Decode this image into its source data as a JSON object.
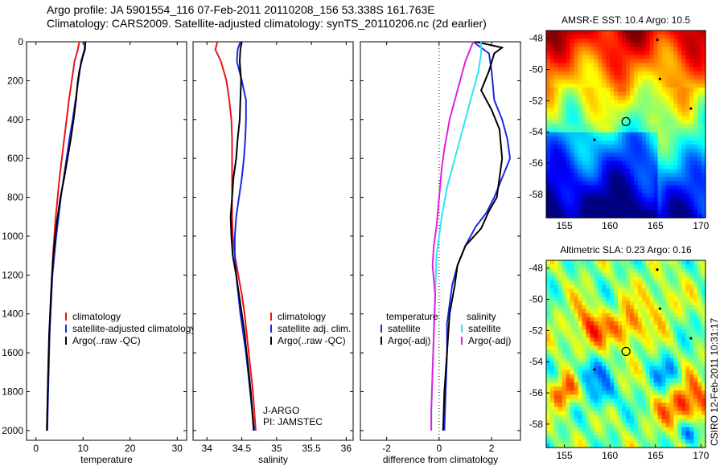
{
  "header": {
    "line1": "Argo profile: JA 5901554_116 07-Feb-2011 20110208_156 53.338S 161.763E",
    "line2": "Climatology: CARS2009. Satellite-adjusted climatology: synTS_20110206.nc (2d earlier)"
  },
  "colors": {
    "climatology": "#e8141a",
    "satellite": "#1a28e0",
    "argo": "#000000",
    "satellite_sal": "#2ee6ee",
    "argo_adj_sal": "#e020e0"
  },
  "chart_data": [
    {
      "type": "line",
      "id": "temperature",
      "xlabel": "temperature",
      "xlim": [
        -2,
        32
      ],
      "ylim": [
        2050,
        0
      ],
      "xticks": [
        0,
        10,
        20,
        30
      ],
      "yticks": [
        0,
        200,
        400,
        600,
        800,
        1000,
        1200,
        1400,
        1600,
        1800,
        2000
      ],
      "legend": {
        "position": "lower-right",
        "entries": [
          "climatology",
          "satellite-adjusted climatology",
          "Argo(..raw -QC)"
        ]
      },
      "series": [
        {
          "name": "climatology",
          "color": "climatology",
          "points": [
            [
              9.2,
              0
            ],
            [
              8.9,
              40
            ],
            [
              8.2,
              100
            ],
            [
              7.6,
              200
            ],
            [
              7.0,
              300
            ],
            [
              6.5,
              400
            ],
            [
              6.0,
              500
            ],
            [
              5.5,
              600
            ],
            [
              5.0,
              700
            ],
            [
              4.6,
              800
            ],
            [
              4.2,
              900
            ],
            [
              3.9,
              1000
            ],
            [
              3.6,
              1100
            ],
            [
              3.4,
              1200
            ],
            [
              3.2,
              1300
            ],
            [
              3.0,
              1400
            ],
            [
              2.9,
              1500
            ],
            [
              2.7,
              1600
            ],
            [
              2.6,
              1700
            ],
            [
              2.5,
              1800
            ],
            [
              2.4,
              1900
            ],
            [
              2.3,
              2000
            ]
          ]
        },
        {
          "name": "satellite-adjusted climatology",
          "color": "satellite",
          "points": [
            [
              10.4,
              0
            ],
            [
              10.3,
              40
            ],
            [
              9.6,
              100
            ],
            [
              9.0,
              200
            ],
            [
              8.4,
              300
            ],
            [
              7.8,
              400
            ],
            [
              7.1,
              500
            ],
            [
              6.5,
              600
            ],
            [
              5.9,
              700
            ],
            [
              5.3,
              800
            ],
            [
              4.8,
              900
            ],
            [
              4.3,
              1000
            ],
            [
              3.9,
              1100
            ],
            [
              3.5,
              1200
            ],
            [
              3.3,
              1300
            ],
            [
              3.1,
              1400
            ],
            [
              2.9,
              1500
            ],
            [
              2.8,
              1600
            ],
            [
              2.7,
              1700
            ],
            [
              2.6,
              1800
            ],
            [
              2.5,
              1900
            ],
            [
              2.4,
              2000
            ]
          ]
        },
        {
          "name": "Argo(..raw -QC)",
          "color": "argo",
          "points": [
            [
              10.5,
              0
            ],
            [
              10.4,
              40
            ],
            [
              9.9,
              80
            ],
            [
              9.2,
              150
            ],
            [
              8.9,
              200
            ],
            [
              8.5,
              300
            ],
            [
              8.0,
              400
            ],
            [
              7.4,
              500
            ],
            [
              6.7,
              600
            ],
            [
              6.0,
              700
            ],
            [
              5.2,
              800
            ],
            [
              4.6,
              900
            ],
            [
              4.1,
              1000
            ],
            [
              3.7,
              1100
            ],
            [
              3.4,
              1200
            ],
            [
              3.2,
              1300
            ],
            [
              3.0,
              1400
            ],
            [
              2.8,
              1500
            ],
            [
              2.7,
              1600
            ],
            [
              2.6,
              1700
            ],
            [
              2.5,
              1800
            ],
            [
              2.4,
              1900
            ],
            [
              2.3,
              2000
            ]
          ]
        }
      ]
    },
    {
      "type": "line",
      "id": "salinity",
      "xlabel": "salinity",
      "xlim": [
        33.8,
        36.1
      ],
      "ylim": [
        2050,
        0
      ],
      "xticks": [
        34,
        34.5,
        35,
        35.5,
        36
      ],
      "yticks": [
        0,
        200,
        400,
        600,
        800,
        1000,
        1200,
        1400,
        1600,
        1800,
        2000
      ],
      "legend": {
        "position": "lower-right",
        "entries": [
          "climatology",
          "satellite adj. clim.",
          "Argo(..raw -QC)"
        ]
      },
      "annotation": [
        "J-ARGO",
        "PI: JAMSTEC"
      ],
      "series": [
        {
          "name": "climatology",
          "color": "climatology",
          "points": [
            [
              34.15,
              0
            ],
            [
              34.12,
              40
            ],
            [
              34.2,
              100
            ],
            [
              34.28,
              200
            ],
            [
              34.32,
              300
            ],
            [
              34.35,
              400
            ],
            [
              34.36,
              500
            ],
            [
              34.36,
              600
            ],
            [
              34.36,
              700
            ],
            [
              34.36,
              800
            ],
            [
              34.36,
              900
            ],
            [
              34.37,
              1000
            ],
            [
              34.4,
              1100
            ],
            [
              34.45,
              1200
            ],
            [
              34.5,
              1300
            ],
            [
              34.54,
              1400
            ],
            [
              34.57,
              1500
            ],
            [
              34.6,
              1600
            ],
            [
              34.63,
              1700
            ],
            [
              34.66,
              1800
            ],
            [
              34.68,
              1900
            ],
            [
              34.7,
              2000
            ]
          ]
        },
        {
          "name": "satellite adj. clim.",
          "color": "satellite",
          "points": [
            [
              34.48,
              0
            ],
            [
              34.44,
              40
            ],
            [
              34.43,
              100
            ],
            [
              34.5,
              200
            ],
            [
              34.56,
              300
            ],
            [
              34.56,
              400
            ],
            [
              34.55,
              500
            ],
            [
              34.53,
              600
            ],
            [
              34.5,
              700
            ],
            [
              34.46,
              800
            ],
            [
              34.42,
              900
            ],
            [
              34.4,
              1000
            ],
            [
              34.4,
              1100
            ],
            [
              34.42,
              1200
            ],
            [
              34.45,
              1300
            ],
            [
              34.48,
              1400
            ],
            [
              34.52,
              1500
            ],
            [
              34.56,
              1600
            ],
            [
              34.59,
              1700
            ],
            [
              34.62,
              1800
            ],
            [
              34.65,
              1900
            ],
            [
              34.68,
              2000
            ]
          ]
        },
        {
          "name": "Argo(..raw -QC)",
          "color": "argo",
          "points": [
            [
              34.5,
              0
            ],
            [
              34.48,
              40
            ],
            [
              34.47,
              100
            ],
            [
              34.49,
              200
            ],
            [
              34.48,
              300
            ],
            [
              34.47,
              400
            ],
            [
              34.44,
              500
            ],
            [
              34.42,
              600
            ],
            [
              34.38,
              700
            ],
            [
              34.36,
              800
            ],
            [
              34.34,
              900
            ],
            [
              34.35,
              1000
            ],
            [
              34.37,
              1100
            ],
            [
              34.42,
              1200
            ],
            [
              34.46,
              1300
            ],
            [
              34.5,
              1400
            ],
            [
              34.54,
              1500
            ],
            [
              34.57,
              1600
            ],
            [
              34.6,
              1700
            ],
            [
              34.63,
              1800
            ],
            [
              34.65,
              1900
            ],
            [
              34.67,
              2000
            ]
          ]
        }
      ]
    },
    {
      "type": "line",
      "id": "difference",
      "xlabel": "difference from climatology",
      "xlim": [
        -3,
        3.1
      ],
      "ylim": [
        2050,
        0
      ],
      "xticks": [
        -2,
        0,
        2
      ],
      "yticks": [
        0,
        200,
        400,
        600,
        800,
        1000,
        1200,
        1400,
        1600,
        1800,
        2000
      ],
      "zero_line": true,
      "legend": {
        "position": "lower-center",
        "headers": [
          "temperature",
          "salinity"
        ],
        "entries_left": [
          "satellite",
          "Argo(-adj)"
        ],
        "entries_right": [
          "satellite",
          "Argo(-adj)"
        ]
      },
      "series": [
        {
          "name": "temperature satellite",
          "color": "satellite",
          "points": [
            [
              1.3,
              0
            ],
            [
              1.9,
              60
            ],
            [
              2.0,
              150
            ],
            [
              2.1,
              300
            ],
            [
              2.4,
              400
            ],
            [
              2.6,
              500
            ],
            [
              2.7,
              600
            ],
            [
              2.4,
              700
            ],
            [
              2.1,
              800
            ],
            [
              1.8,
              880
            ],
            [
              1.4,
              950
            ],
            [
              1.0,
              1050
            ],
            [
              0.7,
              1150
            ],
            [
              0.5,
              1250
            ],
            [
              0.4,
              1350
            ],
            [
              0.3,
              1450
            ],
            [
              0.3,
              1600
            ],
            [
              0.25,
              1800
            ],
            [
              0.2,
              2000
            ]
          ]
        },
        {
          "name": "temperature Argo(-adj)",
          "color": "argo",
          "points": [
            [
              1.4,
              0
            ],
            [
              2.4,
              30
            ],
            [
              2.1,
              60
            ],
            [
              1.9,
              150
            ],
            [
              1.6,
              250
            ],
            [
              2.0,
              350
            ],
            [
              2.3,
              450
            ],
            [
              2.4,
              600
            ],
            [
              2.3,
              700
            ],
            [
              2.2,
              800
            ],
            [
              1.9,
              870
            ],
            [
              1.6,
              960
            ],
            [
              1.0,
              1050
            ],
            [
              0.7,
              1150
            ],
            [
              0.6,
              1250
            ],
            [
              0.4,
              1400
            ],
            [
              0.3,
              1600
            ],
            [
              0.2,
              1800
            ],
            [
              0.15,
              2000
            ]
          ]
        },
        {
          "name": "salinity satellite",
          "color": "satellite_sal",
          "points": [
            [
              1.6,
              0
            ],
            [
              1.6,
              60
            ],
            [
              1.5,
              150
            ],
            [
              1.2,
              300
            ],
            [
              0.9,
              450
            ],
            [
              0.6,
              600
            ],
            [
              0.3,
              750
            ],
            [
              0.1,
              900
            ],
            [
              -0.1,
              1100
            ],
            [
              -0.15,
              1300
            ],
            [
              -0.2,
              1500
            ],
            [
              -0.25,
              1700
            ],
            [
              -0.3,
              1900
            ],
            [
              -0.3,
              2000
            ]
          ]
        },
        {
          "name": "salinity Argo(-adj)",
          "color": "argo_adj_sal",
          "points": [
            [
              1.3,
              0
            ],
            [
              1.0,
              100
            ],
            [
              0.8,
              200
            ],
            [
              0.6,
              300
            ],
            [
              0.4,
              400
            ],
            [
              0.2,
              550
            ],
            [
              0.1,
              650
            ],
            [
              0.0,
              800
            ],
            [
              -0.1,
              950
            ],
            [
              -0.2,
              1050
            ],
            [
              -0.25,
              1150
            ],
            [
              -0.15,
              1300
            ],
            [
              -0.2,
              1500
            ],
            [
              -0.25,
              1700
            ],
            [
              -0.3,
              1900
            ],
            [
              -0.3,
              2000
            ]
          ]
        }
      ]
    },
    {
      "type": "heatmap",
      "id": "sst",
      "title": "AMSR-E SST: 10.4 Argo: 10.5",
      "xlim": [
        153,
        170.5
      ],
      "ylim": [
        -59.5,
        -47.5
      ],
      "xticks": [
        155,
        160,
        165,
        170
      ],
      "yticks": [
        -48,
        -50,
        -52,
        -54,
        -56,
        -58
      ],
      "marker": [
        161.763,
        -53.338
      ]
    },
    {
      "type": "heatmap",
      "id": "sla",
      "title": "Altimetric SLA: 0.23 Argo: 0.16",
      "xlim": [
        153,
        170.5
      ],
      "ylim": [
        -59.5,
        -47.5
      ],
      "xticks": [
        155,
        160,
        165,
        170
      ],
      "yticks": [
        -48,
        -50,
        -52,
        -54,
        -56,
        -58
      ],
      "marker": [
        161.763,
        -53.338
      ]
    }
  ],
  "footer": {
    "credit": "CSIRO 12-Feb-2011 10:31:17"
  }
}
